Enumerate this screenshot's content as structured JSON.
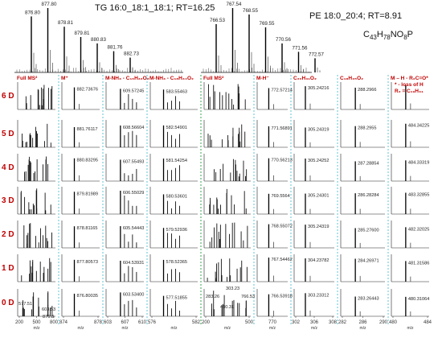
{
  "chart_data": [
    {
      "type": "bar",
      "title": "TG 16:0_18:1_18:1; RT=16.25",
      "peaks": [
        {
          "mz": 876.8,
          "label": "876.80",
          "rel": 0.87
        },
        {
          "mz": 877.8,
          "label": "877.80",
          "rel": 1.0
        },
        {
          "mz": 878.81,
          "label": "878.81",
          "rel": 0.71
        },
        {
          "mz": 879.81,
          "label": "879.81",
          "rel": 0.55
        },
        {
          "mz": 880.83,
          "label": "880.83",
          "rel": 0.45
        },
        {
          "mz": 881.76,
          "label": "881.76",
          "rel": 0.33
        },
        {
          "mz": 882.73,
          "label": "882.73",
          "rel": 0.23
        }
      ]
    },
    {
      "type": "bar",
      "title": "PE 18:0_20:4; RT=8.91",
      "formula": "C43H78NO8P",
      "peaks": [
        {
          "mz": 766.53,
          "label": "766.53",
          "rel": 0.75
        },
        {
          "mz": 767.54,
          "label": "767.54",
          "rel": 1.0
        },
        {
          "mz": 768.55,
          "label": "768.55",
          "rel": 0.9
        },
        {
          "mz": 769.55,
          "label": "769.55",
          "rel": 0.7
        },
        {
          "mz": 770.56,
          "label": "770.56",
          "rel": 0.45
        },
        {
          "mz": 771.56,
          "label": "771.56",
          "rel": 0.32
        },
        {
          "mz": 772.57,
          "label": "772.57",
          "rel": 0.22
        }
      ]
    },
    {
      "type": "table",
      "headers": [
        "Full MS²",
        "M⁺",
        "M-NH₃ - C₁₆H₃₂O₂",
        "M-NH₃ - C₁₈H₃₄O₂",
        "Full MS²",
        "M-H⁻",
        "C₂₀H₃₁O₂",
        "C₁₈H₃₅O₂",
        "M – H - R₂C=O*"
      ],
      "header_note": [
        "* - loss of H",
        "R₂ = C₁₉H₃₁"
      ],
      "row_labels": [
        "6 D",
        "5 D",
        "4 D",
        "3 D",
        "2 D",
        "1 D",
        "0 D"
      ],
      "cells": [
        [
          "",
          "882.73676",
          "609.57245",
          "583.55463",
          "",
          "772.57214",
          "305.24216",
          "288.2966",
          ""
        ],
        [
          "",
          "881.76117",
          "608.56604",
          "582.54901",
          "",
          "771.56891",
          "305.24319",
          "288.2955",
          "484.34225"
        ],
        [
          "",
          "880.83295",
          "607.55493",
          "581.54254",
          "",
          "770.56213",
          "305.24252",
          "287.28854",
          "484.33319"
        ],
        [
          "",
          "879.81989",
          "606.55029",
          "580.53601",
          "",
          "769.5564",
          "305.24301",
          "286.28284",
          "483.32855"
        ],
        [
          "",
          "878.81165",
          "605.54443",
          "579.52936",
          "",
          "768.55072",
          "305.24319",
          "285.27600",
          "482.32025"
        ],
        [
          "",
          "877.80573",
          "604.53931",
          "578.52365",
          "",
          "767.54462",
          "304.23782",
          "284.26971",
          "481.31586"
        ],
        [
          "",
          "876.80035",
          "603.53400",
          "577.51855",
          "",
          "766.53918",
          "303.23312",
          "283.26443",
          "480.31064"
        ]
      ],
      "fullms_left_labels": [
        "577.51",
        "603.53",
        "876.8"
      ],
      "fullms_right_labels": [
        "303.23",
        "283.26",
        "480.31",
        "766.53"
      ],
      "x_ticks": [
        [
          "200",
          "500",
          "800"
        ],
        [
          "874",
          "878"
        ],
        [
          "603",
          "607",
          "610"
        ],
        [
          "576",
          "582"
        ],
        [
          "200",
          "500"
        ],
        [
          "770"
        ],
        [
          "302",
          "306",
          "308"
        ],
        [
          "282",
          "286",
          "290"
        ],
        [
          "480",
          "484"
        ]
      ],
      "x_label": "m/z"
    }
  ]
}
